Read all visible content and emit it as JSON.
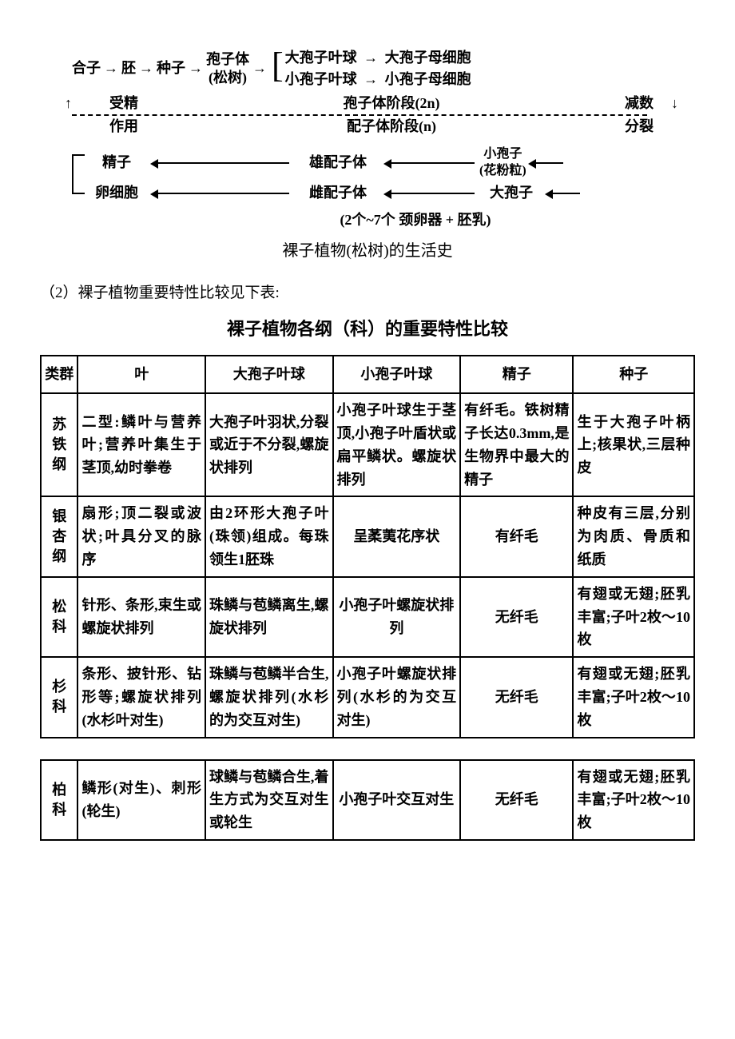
{
  "diagram": {
    "top_chain": [
      "合子",
      "胚",
      "种子"
    ],
    "sporophyte": {
      "label": "孢子体",
      "sub": "(松树)"
    },
    "branch_up": {
      "a": "大孢子叶球",
      "b": "大孢子母细胞"
    },
    "branch_dn": {
      "a": "小孢子叶球",
      "b": "小孢子母细胞"
    },
    "left_top": "受精",
    "left_bot": "作用",
    "mid_top": "孢子体阶段(2n)",
    "mid_bot": "配子体阶段(n)",
    "right_top": "减数",
    "right_bot": "分裂",
    "row_sperm": {
      "a": "精子",
      "b": "雄配子体"
    },
    "sperm_small": {
      "l1": "小孢子",
      "l2": "(花粉粒)"
    },
    "row_egg": {
      "a": "卵细胞",
      "b": "雌配子体",
      "c": "大孢子"
    },
    "sub_note": "(2个~7个 颈卵器 + 胚乳)",
    "caption": "裸子植物(松树)的生活史"
  },
  "note": "（2）裸子植物重要特性比较见下表:",
  "table_title": "裸子植物各纲（科）的重要特性比较",
  "columns": [
    "类群",
    "叶",
    "大孢子叶球",
    "小孢子叶球",
    "精子",
    "种子"
  ],
  "col_widths": [
    "46px",
    "158px",
    "158px",
    "158px",
    "140px",
    "150px"
  ],
  "rows_a": [
    {
      "group": "苏铁纲",
      "c1": "二型:鳞叶与营养叶;营养叶集生于茎顶,幼时拳卷",
      "c2": "大孢子叶羽状,分裂或近于不分裂,螺旋状排列",
      "c3": "小孢子叶球生于茎顶,小孢子叶盾状或扁平鳞状。螺旋状排列",
      "c4": "有纤毛。铁树精子长达0.3mm,是生物界中最大的精子",
      "c5": "生于大孢子叶柄上;核果状,三层种皮"
    },
    {
      "group": "银杏纲",
      "c1": "扇形;顶二裂或波状;叶具分叉的脉序",
      "c2": "由2环形大孢子叶(珠领)组成。每珠领生1胚珠",
      "c3": "呈葇荑花序状",
      "c4": "有纤毛",
      "c5": "种皮有三层,分别为肉质、骨质和纸质"
    },
    {
      "group": "松科",
      "c1": "针形、条形,束生或螺旋状排列",
      "c2": "珠鳞与苞鳞离生,螺旋状排列",
      "c3": "小孢子叶螺旋状排列",
      "c4": "无纤毛",
      "c5": "有翅或无翅;胚乳丰富;子叶2枚～10枚"
    },
    {
      "group": "杉科",
      "c1": "条形、披针形、钻形等;螺旋状排列(水杉叶对生)",
      "c2": "珠鳞与苞鳞半合生,螺旋状排列(水杉的为交互对生)",
      "c3": "小孢子叶螺旋状排列(水杉的为交互对生)",
      "c4": "无纤毛",
      "c5": "有翅或无翅;胚乳丰富;子叶2枚～10枚"
    }
  ],
  "rows_b": [
    {
      "group": "柏科",
      "c1": "鳞形(对生)、刺形(轮生)",
      "c2": "球鳞与苞鳞合生,着生方式为交互对生或轮生",
      "c3": "小孢子叶交互对生",
      "c4": "无纤毛",
      "c5": "有翅或无翅;胚乳丰富;子叶2枚～10枚"
    }
  ]
}
